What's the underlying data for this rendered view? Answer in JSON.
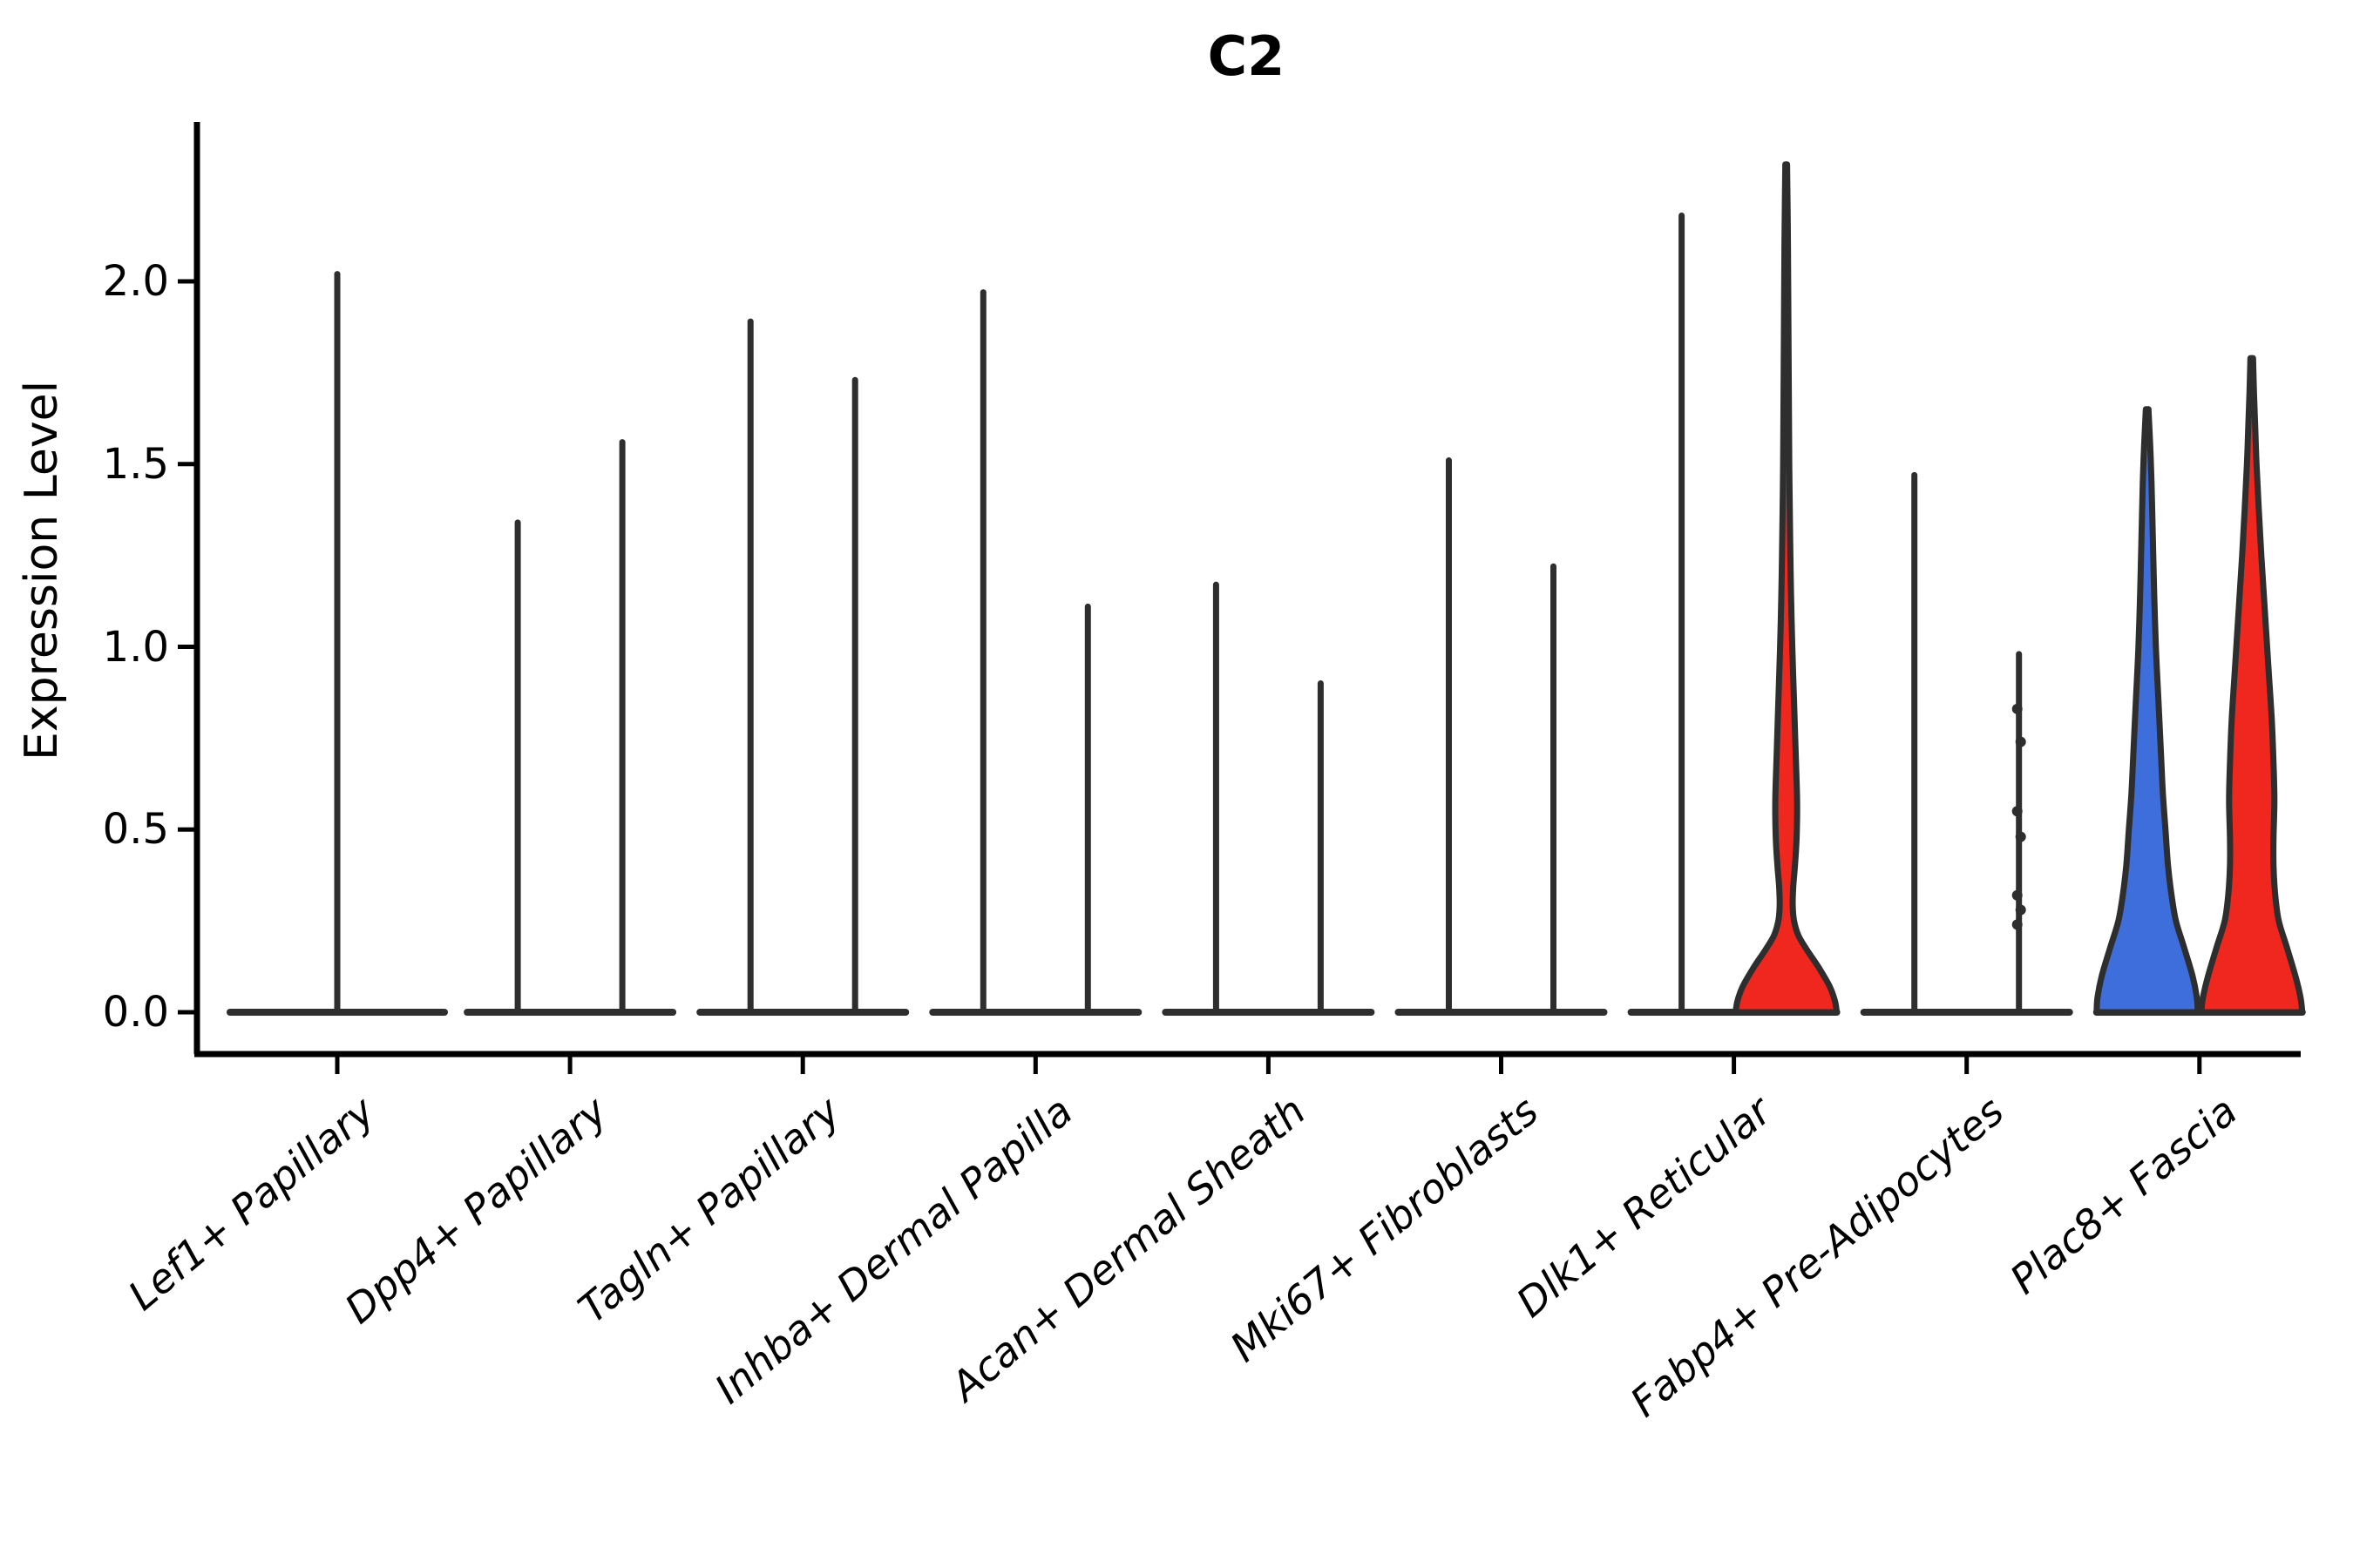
{
  "title": "C2",
  "ylabel": "Expression Level",
  "colors": {
    "blue": "#3E6EDB",
    "red": "#F0271F",
    "edge": "#2E2E2E",
    "axis": "#000000",
    "background": "#ffffff"
  },
  "y_tick_labels": [
    "0.0",
    "0.5",
    "1.0",
    "1.5",
    "2.0"
  ],
  "chart_data": {
    "type": "violin",
    "title": "C2",
    "xlabel": "",
    "ylabel": "Expression Level",
    "ylim": [
      0,
      2.45
    ],
    "y_ticks": [
      0.0,
      0.5,
      1.0,
      1.5,
      2.0
    ],
    "grid": false,
    "legend": "none",
    "categories": [
      "Lef1+ Papillary",
      "Dpp4+ Papillary",
      "Tagln+ Papillary",
      "Inhba+ Dermal Papilla",
      "Acan+ Dermal Sheath",
      "Mki67+ Fibroblasts",
      "Dlk1+ Reticular",
      "Fabp4+ Pre-Adipocytes",
      "Plac8+ Fascia"
    ],
    "series": [
      {
        "name": "blue-group",
        "color": "#3E6EDB",
        "max_values": [
          2.02,
          1.34,
          1.89,
          1.97,
          1.17,
          1.51,
          2.18,
          1.47,
          1.65
        ]
      },
      {
        "name": "red-group",
        "color": "#F0271F",
        "max_values": [
          null,
          1.56,
          1.73,
          1.11,
          0.9,
          1.22,
          2.32,
          0.98,
          1.79
        ]
      }
    ],
    "note": "Most violins collapse to a thin spike with a flat base at 0; only Dlk1+ Reticular (red), Plac8+ Fascia (blue) and Plac8+ Fascia (red) show visible filled density bodies.",
    "filled_profiles": [
      {
        "category": 6,
        "series": "red-group",
        "profile": [
          [
            0,
            58
          ],
          [
            0.03,
            56
          ],
          [
            0.07,
            50
          ],
          [
            0.12,
            38
          ],
          [
            0.17,
            24
          ],
          [
            0.21,
            14
          ],
          [
            0.25,
            9
          ],
          [
            0.29,
            7.5
          ],
          [
            0.34,
            8
          ],
          [
            0.4,
            10
          ],
          [
            0.48,
            12
          ],
          [
            0.58,
            12.5
          ],
          [
            0.7,
            11
          ],
          [
            0.85,
            9
          ],
          [
            1.0,
            7
          ],
          [
            1.15,
            5.5
          ],
          [
            1.3,
            4.5
          ],
          [
            1.5,
            3.5
          ],
          [
            1.7,
            3
          ],
          [
            1.9,
            2.5
          ],
          [
            2.1,
            2
          ],
          [
            2.32,
            1
          ]
        ]
      },
      {
        "category": 8,
        "series": "blue-group",
        "profile": [
          [
            0,
            58
          ],
          [
            0.04,
            57
          ],
          [
            0.1,
            52
          ],
          [
            0.18,
            42
          ],
          [
            0.25,
            33
          ],
          [
            0.32,
            28
          ],
          [
            0.4,
            24
          ],
          [
            0.5,
            21
          ],
          [
            0.6,
            18
          ],
          [
            0.7,
            16
          ],
          [
            0.85,
            13
          ],
          [
            1.0,
            10
          ],
          [
            1.15,
            8
          ],
          [
            1.3,
            6.5
          ],
          [
            1.45,
            5
          ],
          [
            1.55,
            3.5
          ],
          [
            1.65,
            1.5
          ]
        ]
      },
      {
        "category": 8,
        "series": "red-group",
        "profile": [
          [
            0,
            58
          ],
          [
            0.04,
            56
          ],
          [
            0.1,
            50
          ],
          [
            0.18,
            40
          ],
          [
            0.25,
            31
          ],
          [
            0.32,
            27
          ],
          [
            0.4,
            25
          ],
          [
            0.48,
            25
          ],
          [
            0.58,
            26
          ],
          [
            0.68,
            25
          ],
          [
            0.8,
            23
          ],
          [
            0.95,
            19
          ],
          [
            1.1,
            15
          ],
          [
            1.25,
            11
          ],
          [
            1.38,
            8
          ],
          [
            1.5,
            5.5
          ],
          [
            1.6,
            4
          ],
          [
            1.7,
            2.5
          ],
          [
            1.79,
            1.5
          ]
        ]
      }
    ],
    "jitter_points": [
      {
        "category": 7,
        "series": "red-group",
        "values": [
          0.83,
          0.74,
          0.55,
          0.48,
          0.32,
          0.28,
          0.24
        ]
      }
    ],
    "single_violin_categories": [
      0
    ]
  }
}
